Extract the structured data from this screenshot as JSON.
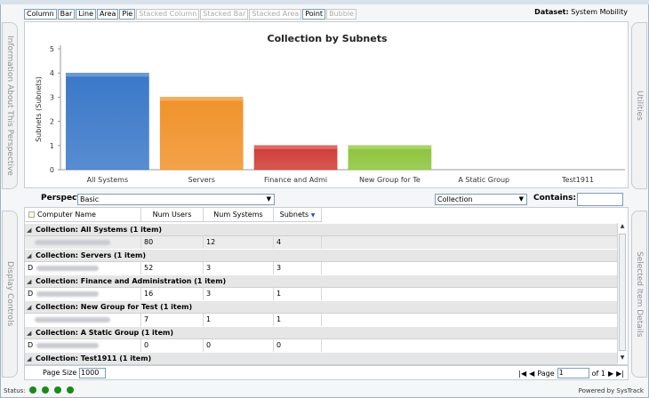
{
  "chart_types": [
    "Column",
    "Bar",
    "Line",
    "Area",
    "Pie",
    "Stacked Column",
    "Stacked Bar",
    "Stacked Area",
    "Point",
    "Bubble"
  ],
  "chart_types_disabled": [
    "Stacked Column",
    "Stacked Bar",
    "Stacked Area",
    "Bubble"
  ],
  "dataset_label": "Dataset:",
  "dataset_value": "System Mobility",
  "side_tabs": {
    "left_top": "Information About This Perspective",
    "left_bottom": "Display Controls",
    "right_top": "Utilities",
    "right_bottom": "Selected Item Details"
  },
  "chart_data": {
    "type": "bar",
    "title": "Collection by Subnets",
    "ylabel": "Subnets (Subnets)",
    "xlabel": "",
    "ylim": [
      0,
      5
    ],
    "yticks": [
      0,
      1,
      2,
      3,
      4,
      5
    ],
    "categories": [
      "All Systems",
      "Servers",
      "Finance and Admi",
      "New Group for Te",
      "A Static Group",
      "Test1911"
    ],
    "values": [
      4,
      3,
      1,
      1,
      0,
      0
    ],
    "colors": [
      "#3a78c8",
      "#f0922a",
      "#d03a34",
      "#8cc43a",
      "#888888",
      "#888888"
    ],
    "grid": false,
    "legend": "none"
  },
  "perspective": {
    "label": "Perspective",
    "value": "Basic"
  },
  "collection_select": {
    "value": "Collection"
  },
  "contains": {
    "label": "Contains:",
    "value": ""
  },
  "grid": {
    "columns": [
      "Computer Name",
      "Num Users",
      "Num Systems",
      "Subnets"
    ],
    "groups": [
      {
        "title": "Collection: All Systems (1 item)",
        "row": {
          "name": "",
          "users": "80",
          "systems": "12",
          "subnets": "4"
        }
      },
      {
        "title": "Collection: Servers (1 item)",
        "row": {
          "name": "D",
          "users": "52",
          "systems": "3",
          "subnets": "3"
        }
      },
      {
        "title": "Collection: Finance and Administration (1 item)",
        "row": {
          "name": "D",
          "users": "16",
          "systems": "3",
          "subnets": "1"
        }
      },
      {
        "title": "Collection: New Group for Test (1 item)",
        "row": {
          "name": "",
          "users": "7",
          "systems": "1",
          "subnets": "1"
        }
      },
      {
        "title": "Collection: A Static Group (1 item)",
        "row": {
          "name": "D",
          "users": "0",
          "systems": "0",
          "subnets": "0"
        }
      },
      {
        "title": "Collection: Test1911 (1 item)",
        "row": null
      }
    ]
  },
  "pager": {
    "page_size_label": "Page Size",
    "page_size": "1000",
    "page_label": "Page",
    "page": "1",
    "of_label": "of 1"
  },
  "status": {
    "label": "Status:",
    "powered": "Powered by SysTrack"
  }
}
